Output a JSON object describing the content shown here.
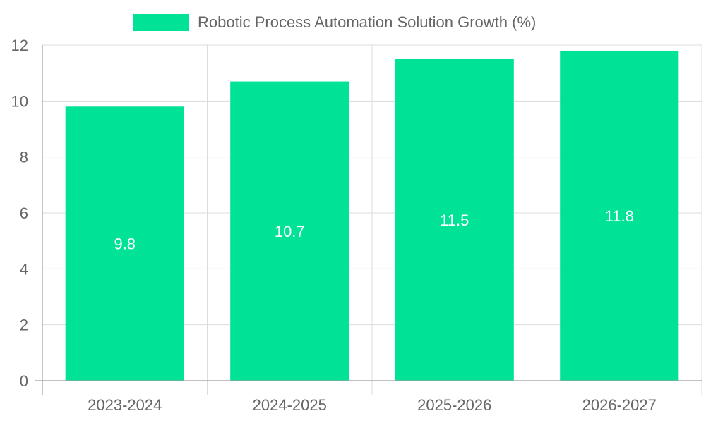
{
  "chart_data": {
    "type": "bar",
    "categories": [
      "2023-2024",
      "2024-2025",
      "2025-2026",
      "2026-2027"
    ],
    "series": [
      {
        "name": "Robotic Process Automation Solution Growth (%)",
        "values": [
          9.8,
          10.7,
          11.5,
          11.8
        ],
        "color": "#00e396"
      }
    ],
    "ylim": [
      0,
      12
    ],
    "yticks": [
      0,
      2,
      4,
      6,
      8,
      10,
      12
    ],
    "grid": true,
    "legend": "top-center",
    "data_labels": [
      "9.8",
      "10.7",
      "11.5",
      "11.8"
    ]
  }
}
